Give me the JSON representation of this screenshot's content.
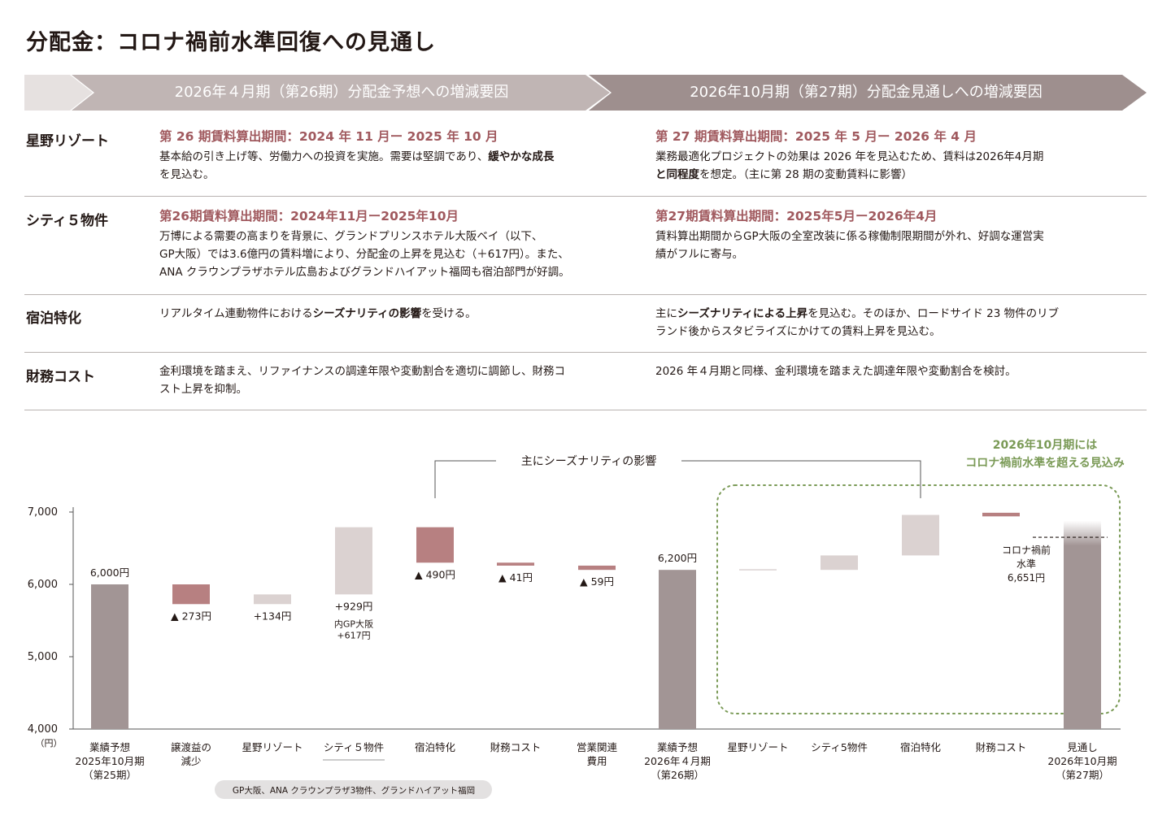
{
  "title": "分配金：コロナ禍前水準回復への見通し",
  "banner": {
    "left": "2026年４月期（第26期）分配金予想への増減要因",
    "right": "2026年10月期（第27期）分配金見通しへの増減要因"
  },
  "colors": {
    "banner_left": "#c0b5b4",
    "banner_right": "#9e8f8e",
    "total_bar": "#a29595",
    "negative_bar": "#b78081",
    "positive_bar": "#dbd2d1",
    "accent_text": "#a0595e",
    "green": "#7a9a56"
  },
  "rows": [
    {
      "label": "星野リゾート",
      "left_period": "第 26 期賃料算出期間：2024 年 11 月ー 2025 年 10 月",
      "left_text_1": "基本給の引き上げ等、労働力への投資を実施。需要は堅調であり、",
      "left_bold_1": "緩やかな成長",
      "left_text_2": "を見込む。",
      "right_period": "第 27 期賃料算出期間：2025 年 5 月ー 2026 年 4 月",
      "right_text_1": "業務最適化プロジェクトの効果は 2026 年を見込むため、賃料は2026年4月期",
      "right_bold_1": "と同程度",
      "right_text_2": "を想定。（主に第 28 期の変動賃料に影響）"
    },
    {
      "label": "シティ５物件",
      "left_period": "第26期賃料算出期間：2024年11月ー2025年10月",
      "left_text_1": "万博による需要の高まりを背景に、グランドプリンスホテル大阪ベイ（以下、",
      "left_text_2": "GP大阪）では3.6億円の賃料増により、分配金の上昇を見込む（＋617円）。また、",
      "left_text_3": "ANA クラウンプラザホテル広島およびグランドハイアット福岡も宿泊部門が好調。",
      "right_period": "第27期賃料算出期間：2025年5月ー2026年4月",
      "right_text_1": "賃料算出期間からGP大阪の全室改装に係る稼働制限期間が外れ、好調な運営実",
      "right_text_2": "績がフルに寄与。"
    },
    {
      "label": "宿泊特化",
      "left_text_1": "リアルタイム連動物件における",
      "left_bold_1": "シーズナリティの影響",
      "left_text_2": "を受ける。",
      "right_text_1": "主に",
      "right_bold_1": "シーズナリティによる上昇",
      "right_text_2": "を見込む。そのほか、ロードサイド 23 物件のリブ",
      "right_text_3": "ランド後からスタビライズにかけての賃料上昇を見込む。"
    },
    {
      "label": "財務コスト",
      "left_text_1": "金利環境を踏まえ、リファイナンスの調達年限や変動割合を適切に調節し、財務コ",
      "left_text_2": "スト上昇を抑制。",
      "right_text_1": "2026 年４月期と同様、金利環境を踏まえた調達年限や変動割合を検討。"
    }
  ],
  "chart_data": {
    "type": "bar",
    "subtype": "waterfall",
    "ylim": [
      4000,
      7000
    ],
    "yticks": [
      "4,000",
      "5,000",
      "6,000",
      "7,000"
    ],
    "yunit": "（円）",
    "bars": [
      {
        "category": "業績予想\n2025年10月期\n（第25期）",
        "kind": "total",
        "start": 0,
        "end": 6000,
        "label": "6,000円"
      },
      {
        "category": "譲渡益の\n減少",
        "kind": "negative",
        "start": 6000,
        "end": 5727,
        "label": "▲ 273円"
      },
      {
        "category": "星野リゾート",
        "kind": "positive",
        "start": 5727,
        "end": 5861,
        "label": "+134円"
      },
      {
        "category": "シティ５物件",
        "kind": "positive",
        "start": 5861,
        "end": 6790,
        "label": "+929円",
        "sublabel": "内GP大阪\n+617円"
      },
      {
        "category": "宿泊特化",
        "kind": "negative",
        "start": 6790,
        "end": 6300,
        "label": "▲ 490円"
      },
      {
        "category": "財務コスト",
        "kind": "negative",
        "start": 6300,
        "end": 6259,
        "label": "▲ 41円"
      },
      {
        "category": "営業関連\n費用",
        "kind": "negative",
        "start": 6259,
        "end": 6200,
        "label": "▲ 59円"
      },
      {
        "category": "業績予想\n2026年４月期\n（第26期）",
        "kind": "total",
        "start": 0,
        "end": 6200,
        "label": "6,200円"
      },
      {
        "category": "星野リゾート",
        "kind": "positive",
        "start": 6200,
        "end": 6210,
        "label": ""
      },
      {
        "category": "シティ5物件",
        "kind": "positive",
        "start": 6200,
        "end": 6400,
        "label": ""
      },
      {
        "category": "宿泊特化",
        "kind": "positive",
        "start": 6400,
        "end": 6960,
        "label": ""
      },
      {
        "category": "財務コスト",
        "kind": "negative",
        "start": 6990,
        "end": 6940,
        "label": ""
      },
      {
        "category": "見通し\n2026年10月期\n（第27期）",
        "kind": "total_fade",
        "start": 0,
        "end": 6880,
        "label": ""
      }
    ],
    "reference_line": {
      "value": 6651,
      "label": "コロナ禍前\n水準\n6,651円"
    },
    "annotation_bracket": "主にシーズナリティの影響",
    "green_callout": "2026年10月期には\nコロナ禍前水準を超える見込み",
    "footnote": "GP大阪、ANA クラウンプラザ3物件、グランドハイアット福岡"
  }
}
